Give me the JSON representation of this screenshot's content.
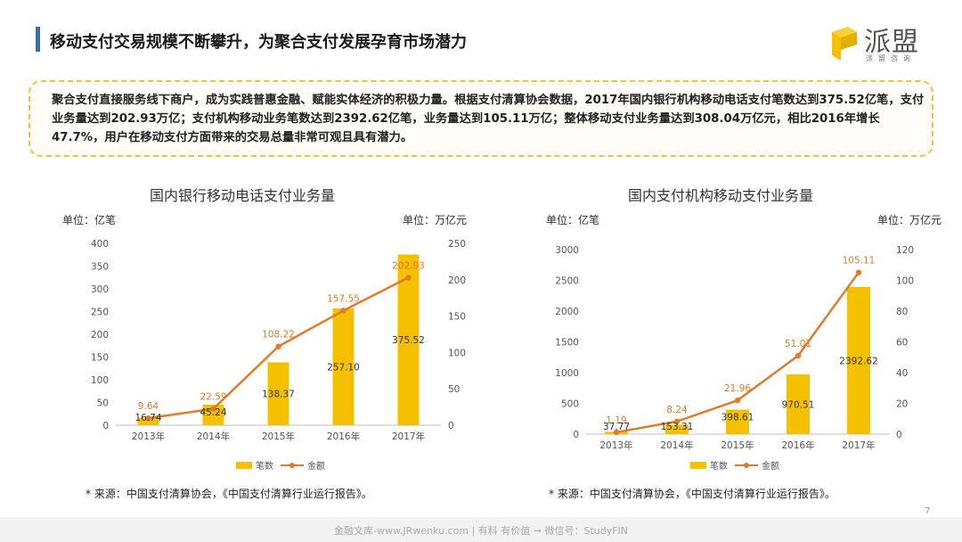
{
  "header": {
    "title": "移动支付交易规模不断攀升，为聚合支付发展孕育市场潜力",
    "logo_text": "派盟",
    "logo_sub": "派盟咨询"
  },
  "summary": "聚合支付直接服务线下商户，成为实践普惠金融、赋能实体经济的积极力量。根据支付清算协会数据，2017年国内银行机构移动电话支付笔数达到375.52亿笔，支付业务量达到202.93万亿；支付机构移动业务笔数达到2392.62亿笔，业务量达到105.11万亿；整体移动支付业务量达到308.04万亿元，相比2016年增长47.7%，用户在移动支付方面带来的交易总量非常可观且具有潜力。",
  "colors": {
    "bar": "#f5c000",
    "line": "#e07b2a",
    "accent": "#3a6ea5",
    "border": "#f2c23c"
  },
  "chart_data": [
    {
      "type": "bar",
      "title": "国内银行移动电话支付业务量",
      "left_unit": "单位：亿笔",
      "right_unit": "单位：万亿元",
      "categories": [
        "2013年",
        "2014年",
        "2015年",
        "2016年",
        "2017年"
      ],
      "series": [
        {
          "name": "笔数",
          "type": "bar",
          "axis": "left",
          "values": [
            16.74,
            45.24,
            138.37,
            257.1,
            375.52
          ]
        },
        {
          "name": "金额",
          "type": "line",
          "axis": "right",
          "values": [
            9.64,
            22.59,
            108.22,
            157.55,
            202.93
          ]
        }
      ],
      "ylim_left": [
        0,
        400
      ],
      "yticks_left": [
        0,
        50,
        100,
        150,
        200,
        250,
        300,
        350,
        400
      ],
      "ylim_right": [
        0,
        250
      ],
      "yticks_right": [
        0,
        50,
        100,
        150,
        200,
        250
      ],
      "source": "* 来源：中国支付清算协会，《中国支付清算行业运行报告》。"
    },
    {
      "type": "bar",
      "title": "国内支付机构移动支付业务量",
      "left_unit": "单位：亿笔",
      "right_unit": "单位：万亿元",
      "categories": [
        "2013年",
        "2014年",
        "2015年",
        "2016年",
        "2017年"
      ],
      "series": [
        {
          "name": "笔数",
          "type": "bar",
          "axis": "left",
          "values": [
            37.77,
            153.31,
            398.61,
            970.51,
            2392.62
          ]
        },
        {
          "name": "金额",
          "type": "line",
          "axis": "right",
          "values": [
            1.19,
            8.24,
            21.96,
            51.01,
            105.11
          ]
        }
      ],
      "ylim_left": [
        0,
        3000
      ],
      "yticks_left": [
        0,
        500,
        1000,
        1500,
        2000,
        2500,
        3000
      ],
      "ylim_right": [
        0,
        120
      ],
      "yticks_right": [
        0,
        20,
        40,
        60,
        80,
        100,
        120
      ],
      "source": "* 来源：中国支付清算协会，《中国支付清算行业运行报告》。"
    }
  ],
  "footer": {
    "text": "金融文库-www.JRwenku.com | 有料  有价值 → 微信号：StudyFIN",
    "page": "7"
  }
}
